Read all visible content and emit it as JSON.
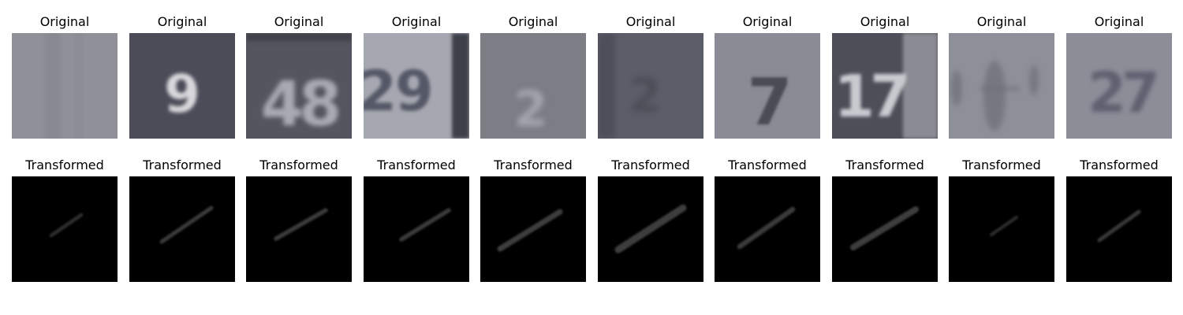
{
  "rows": {
    "original": {
      "panel_title": "Original",
      "panels": [
        {
          "digits": "",
          "bg": "#8f9098",
          "ink": "#83848c",
          "blur": 3.5,
          "content_icon": "faint-vertical-bars"
        },
        {
          "digits": "9",
          "bg": "#4b4c58",
          "ink": "#d8d8dc",
          "blur": 2.5,
          "content_icon": "digit-glyph"
        },
        {
          "digits": "48",
          "bg": "#54555f",
          "ink": "#a9aab2",
          "blur": 3.0,
          "content_icon": "digit-glyph"
        },
        {
          "digits": "29",
          "bg": "#a6a8b1",
          "ink": "#545866",
          "blur": 2.0,
          "content_icon": "digit-glyph"
        },
        {
          "digits": "2",
          "bg": "#7c7d85",
          "ink": "#a3a4ab",
          "blur": 3.5,
          "content_icon": "digit-glyph"
        },
        {
          "digits": "2",
          "bg": "#5b5d68",
          "ink": "#4b4d57",
          "blur": 4.0,
          "content_icon": "digit-glyph"
        },
        {
          "digits": "7",
          "bg": "#8a8b94",
          "ink": "#4a4b54",
          "blur": 1.5,
          "content_icon": "digit-glyph"
        },
        {
          "digits": "17",
          "bg": "#4d4e58",
          "ink": "#c9cad0",
          "blur": 2.0,
          "content_icon": "digit-glyph"
        },
        {
          "digits": "",
          "bg": "#8d9099",
          "ink": "#6c6e78",
          "blur": 3.5,
          "content_icon": "faint-symbols"
        },
        {
          "digits": "27",
          "bg": "#8b8d97",
          "ink": "#5f6170",
          "blur": 3.0,
          "content_icon": "digit-glyph"
        }
      ]
    },
    "transformed": {
      "panel_title": "Transformed",
      "panels": [
        {
          "bg": "#000000",
          "stroke": "#2f2f2f",
          "content_icon": "diagonal-stroke"
        },
        {
          "bg": "#000000",
          "stroke": "#3a3a3a",
          "content_icon": "diagonal-stroke"
        },
        {
          "bg": "#000000",
          "stroke": "#3a3a3a",
          "content_icon": "diagonal-stroke"
        },
        {
          "bg": "#000000",
          "stroke": "#3a3a3a",
          "content_icon": "diagonal-stroke"
        },
        {
          "bg": "#000000",
          "stroke": "#3c3c3c",
          "content_icon": "diagonal-stroke"
        },
        {
          "bg": "#000000",
          "stroke": "#3c3c3c",
          "content_icon": "diagonal-stroke"
        },
        {
          "bg": "#000000",
          "stroke": "#3a3a3a",
          "content_icon": "diagonal-stroke"
        },
        {
          "bg": "#000000",
          "stroke": "#3c3c3c",
          "content_icon": "diagonal-stroke"
        },
        {
          "bg": "#000000",
          "stroke": "#2f2f2f",
          "content_icon": "diagonal-stroke"
        },
        {
          "bg": "#000000",
          "stroke": "#383838",
          "content_icon": "diagonal-stroke"
        }
      ]
    }
  }
}
